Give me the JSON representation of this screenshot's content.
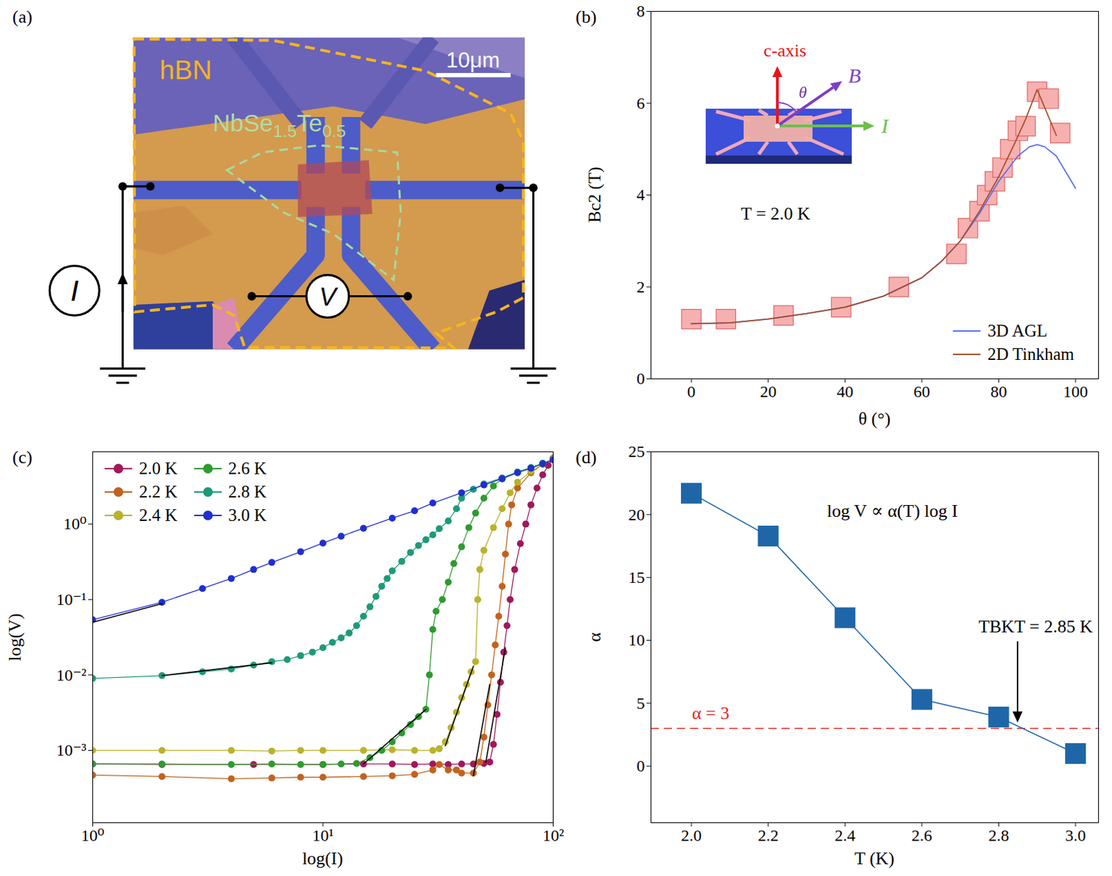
{
  "image_panel": {
    "panel_label": "(a)",
    "hbn": "hBN",
    "flake": "NbSe1.5Te0.5",
    "scale_bar": "10μm",
    "current": "I",
    "voltage": "V"
  },
  "chart_data": [
    {
      "panel_label": "(b)",
      "type": "scatter",
      "marker": "square",
      "color": "#f7b0b0",
      "x_label": "θ (°)",
      "y_label": "Bc2 (T)",
      "xlim": [
        -10.5,
        106
      ],
      "xticks": [
        0,
        20,
        40,
        60,
        80,
        100
      ],
      "ylim": [
        0,
        8
      ],
      "yticks": [
        0,
        2,
        4,
        6,
        8
      ],
      "x": [
        0,
        9,
        24,
        39,
        54,
        69,
        72,
        75,
        77,
        79,
        81,
        83,
        85,
        87,
        90,
        93,
        96
      ],
      "values": [
        1.3,
        1.3,
        1.38,
        1.56,
        2.0,
        2.72,
        3.28,
        3.65,
        4.0,
        4.3,
        4.6,
        5.0,
        5.4,
        5.5,
        6.25,
        6.1,
        5.35
      ],
      "series": [
        {
          "name": "3D AGL",
          "type": "line",
          "color": "#5b6ff0",
          "x": [
            0,
            10,
            20,
            30,
            40,
            50,
            60,
            65,
            70,
            75,
            80,
            85,
            88,
            90,
            92,
            95,
            100
          ],
          "values": [
            1.2,
            1.22,
            1.3,
            1.42,
            1.56,
            1.8,
            2.2,
            2.55,
            3.0,
            3.6,
            4.3,
            4.85,
            5.05,
            5.1,
            5.05,
            4.85,
            4.15
          ]
        },
        {
          "name": "2D Tinkham",
          "type": "line",
          "color": "#a5502a",
          "x": [
            0,
            10,
            20,
            30,
            40,
            50,
            60,
            65,
            70,
            75,
            80,
            84,
            87,
            90,
            92,
            95
          ],
          "values": [
            1.2,
            1.22,
            1.3,
            1.42,
            1.56,
            1.8,
            2.2,
            2.55,
            3.0,
            3.65,
            4.4,
            5.1,
            5.65,
            6.3,
            5.9,
            5.3
          ]
        }
      ],
      "legend": "lower right",
      "annotation": "T = 2.0 K",
      "inset": {
        "c_axis": "c-axis",
        "field": "B",
        "angle": "θ",
        "current": "I"
      }
    },
    {
      "panel_label": "(c)",
      "type": "line",
      "marker": "circle",
      "log": true,
      "x_label": "log(I)",
      "y_label": "log(V)",
      "xlim": [
        1,
        100
      ],
      "xticks": [
        {
          "value": 1,
          "label": "10⁰"
        },
        {
          "value": 10,
          "label": "10¹"
        },
        {
          "value": 100,
          "label": "10²"
        }
      ],
      "ylim": [
        0.00011,
        9.1
      ],
      "yticks": [
        {
          "value": 0.001,
          "label": "10⁻³"
        },
        {
          "value": 0.01,
          "label": "10⁻²"
        },
        {
          "value": 0.1,
          "label": "10⁻¹"
        },
        {
          "value": 1,
          "label": "10⁰"
        }
      ],
      "legend": "upper left",
      "series": [
        {
          "name": "2.0 K",
          "color": "#a0185a",
          "x": [
            1,
            2,
            5,
            10,
            15,
            20,
            25,
            30,
            35,
            40,
            45,
            50,
            53,
            55,
            57,
            59,
            61,
            63,
            65,
            68,
            72,
            76,
            80,
            85,
            90,
            95,
            100
          ],
          "values": [
            0.00066,
            0.00065,
            0.00065,
            0.00065,
            0.00066,
            0.00066,
            0.00065,
            0.00066,
            0.00065,
            0.00066,
            0.00066,
            0.00067,
            0.0007,
            0.0012,
            0.003,
            0.008,
            0.02,
            0.045,
            0.1,
            0.25,
            0.55,
            1.0,
            1.8,
            3.0,
            4.5,
            6.0,
            7.5
          ],
          "fit": {
            "x": [
              51,
              62
            ],
            "values": [
              0.0007,
              0.023
            ]
          }
        },
        {
          "name": "2.2 K",
          "color": "#c2621e",
          "x": [
            1,
            2,
            4,
            6,
            8,
            10,
            15,
            20,
            25,
            30,
            32,
            35,
            38,
            40,
            45,
            48,
            50,
            52,
            54,
            56,
            58,
            60,
            62,
            64,
            66,
            70,
            80,
            90,
            100
          ],
          "values": [
            0.00047,
            0.00045,
            0.00042,
            0.00043,
            0.00044,
            0.00044,
            0.00045,
            0.00046,
            0.00048,
            0.00055,
            0.00065,
            0.00055,
            0.00055,
            0.0005,
            0.0005,
            0.0007,
            0.0015,
            0.004,
            0.01,
            0.025,
            0.06,
            0.15,
            0.4,
            1.0,
            1.8,
            3.0,
            4.8,
            6.2,
            7.4
          ],
          "fit": {
            "x": [
              45,
              53
            ],
            "values": [
              0.00046,
              0.0075
            ]
          }
        },
        {
          "name": "2.4 K",
          "color": "#b8b32a",
          "x": [
            1,
            2,
            4,
            6,
            8,
            10,
            15,
            20,
            25,
            30,
            32,
            34,
            36,
            38,
            40,
            42,
            44,
            46,
            47,
            48,
            50,
            55,
            60,
            65,
            70,
            80,
            90,
            100
          ],
          "values": [
            0.001,
            0.001,
            0.001,
            0.00098,
            0.001,
            0.001,
            0.001,
            0.00102,
            0.001,
            0.001,
            0.00105,
            0.0013,
            0.002,
            0.0032,
            0.005,
            0.0075,
            0.011,
            0.015,
            0.1,
            0.25,
            0.45,
            0.9,
            1.6,
            2.6,
            3.6,
            5.0,
            6.2,
            7.3
          ],
          "fit": {
            "x": [
              34,
              45
            ],
            "values": [
              0.00115,
              0.013
            ]
          }
        },
        {
          "name": "2.6 K",
          "color": "#2e9b30",
          "x": [
            1,
            2,
            4,
            6,
            8,
            10,
            12,
            14,
            16,
            18,
            20,
            22,
            24,
            26,
            28,
            29,
            30,
            31,
            33,
            35,
            37,
            40,
            43,
            46,
            50,
            55,
            60,
            70,
            80,
            90,
            100
          ],
          "values": [
            0.00066,
            0.00066,
            0.00065,
            0.00066,
            0.00065,
            0.00065,
            0.00066,
            0.00067,
            0.0008,
            0.001,
            0.0013,
            0.0017,
            0.0022,
            0.0028,
            0.0035,
            0.01,
            0.04,
            0.07,
            0.1,
            0.17,
            0.3,
            0.5,
            0.9,
            1.4,
            2.2,
            3.2,
            4.0,
            4.9,
            5.6,
            6.4,
            7.2
          ],
          "fit": {
            "x": [
              15,
              28
            ],
            "values": [
              0.00066,
              0.0035
            ]
          }
        },
        {
          "name": "2.8 K",
          "color": "#1d9a78",
          "x": [
            1,
            2,
            3,
            4,
            5,
            6,
            7,
            8,
            9,
            10,
            11,
            12,
            13,
            14,
            15,
            16,
            17,
            18,
            19,
            20,
            22,
            24,
            26,
            28,
            30,
            32,
            35,
            38,
            40,
            45,
            50,
            60,
            70,
            80,
            90,
            100
          ],
          "values": [
            0.009,
            0.0098,
            0.011,
            0.012,
            0.0135,
            0.015,
            0.016,
            0.018,
            0.02,
            0.023,
            0.027,
            0.031,
            0.036,
            0.045,
            0.06,
            0.08,
            0.11,
            0.15,
            0.19,
            0.24,
            0.32,
            0.42,
            0.52,
            0.62,
            0.72,
            0.87,
            1.1,
            1.6,
            2.2,
            2.9,
            3.4,
            4.1,
            4.9,
            5.6,
            6.4,
            7.2
          ],
          "fit": {
            "x": [
              2,
              6
            ],
            "values": [
              0.0098,
              0.0145
            ]
          }
        },
        {
          "name": "3.0 K",
          "color": "#1f2fd0",
          "x": [
            1,
            2,
            3,
            4,
            5,
            6,
            8,
            10,
            12,
            15,
            20,
            25,
            30,
            40,
            50,
            60,
            70,
            80,
            90,
            100
          ],
          "values": [
            0.054,
            0.092,
            0.14,
            0.19,
            0.25,
            0.31,
            0.43,
            0.56,
            0.69,
            0.88,
            1.2,
            1.5,
            1.9,
            2.6,
            3.3,
            4.0,
            4.8,
            5.5,
            6.3,
            7.1
          ],
          "fit": {
            "x": [
              1,
              2
            ],
            "values": [
              0.05,
              0.088
            ]
          }
        }
      ]
    },
    {
      "panel_label": "(d)",
      "type": "line",
      "marker": "square",
      "color": "#1f66a8",
      "x_label": "T (K)",
      "y_label": "α",
      "xlim": [
        1.895,
        3.06
      ],
      "xticks": [
        {
          "value": 2,
          "label": "2.0"
        },
        2.2,
        2.4,
        2.6,
        2.8,
        {
          "value": 3,
          "label": "3.0"
        }
      ],
      "ylim": [
        -4.5,
        25
      ],
      "yticks": [
        0,
        5,
        10,
        15,
        20,
        25
      ],
      "x": [
        2,
        2.2,
        2.4,
        2.6,
        2.8,
        3
      ],
      "values": [
        21.7,
        18.3,
        11.8,
        5.3,
        3.9,
        1.0
      ],
      "annotation": "log V ∝ α(T) log I",
      "reference": {
        "value": 3,
        "label": "α = 3",
        "color": "#e8231f",
        "line_style": "dashed"
      },
      "marker_annotation": {
        "value": 2.85,
        "label": "TBKT = 2.85 K"
      }
    }
  ]
}
